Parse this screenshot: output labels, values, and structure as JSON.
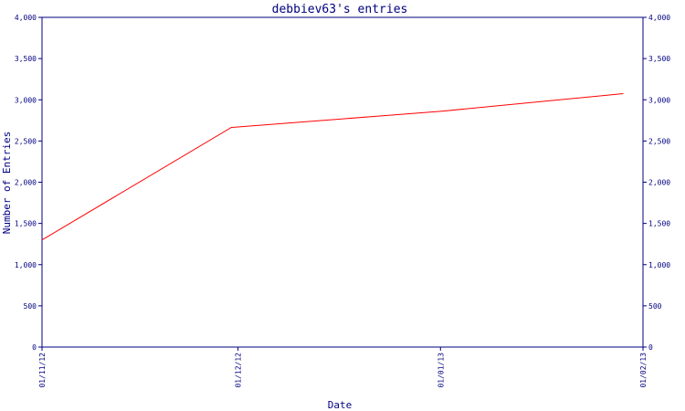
{
  "chart_data": {
    "type": "line",
    "title": "debbiev63's entries",
    "xlabel": "Date",
    "ylabel": "Number of Entries",
    "x_ticks": [
      "01/11/12",
      "01/12/12",
      "01/01/13",
      "01/02/13"
    ],
    "y_ticks": [
      "0",
      "500",
      "1,000",
      "1,500",
      "2,000",
      "2,500",
      "3,000",
      "3,500",
      "4,000"
    ],
    "ylim": [
      0,
      4000
    ],
    "xlim": [
      "2012-11-01",
      "2013-02-01"
    ],
    "grid": false,
    "right_axis": true,
    "series": [
      {
        "color": "#ff0000",
        "points": [
          {
            "x": "2012-11-01",
            "y": 1300
          },
          {
            "x": "2012-11-30",
            "y": 2665
          },
          {
            "x": "2013-01-01",
            "y": 2860
          },
          {
            "x": "2013-01-29",
            "y": 3075
          }
        ]
      }
    ],
    "colors": {
      "axis": "#000080",
      "line": "#ff0000"
    }
  }
}
